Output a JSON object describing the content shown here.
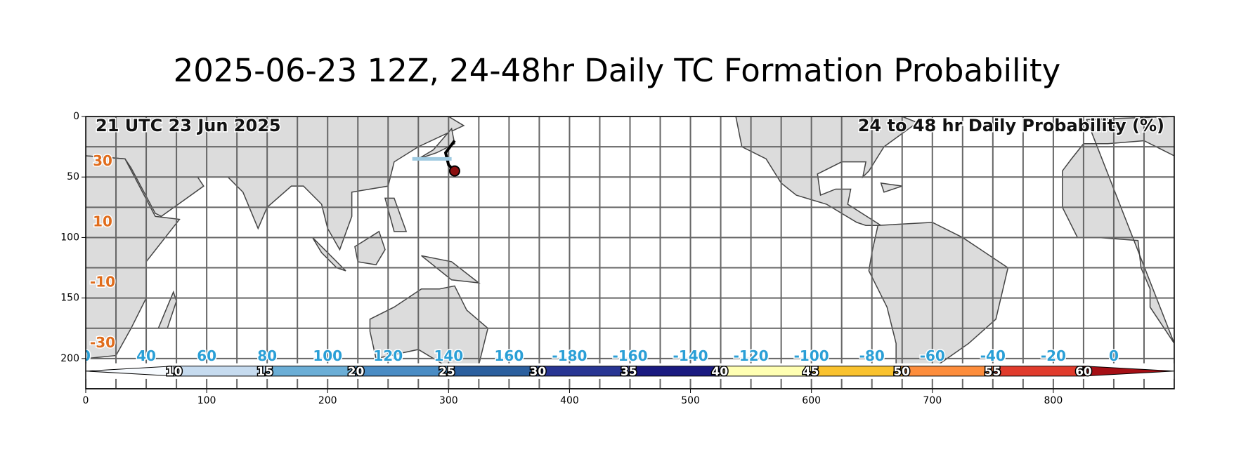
{
  "title": "2025-06-23 12Z, 24-48hr Daily TC Formation Probability",
  "axes": {
    "xlim": [
      0,
      900
    ],
    "ylim": [
      225,
      0
    ],
    "xticks": [
      0,
      100,
      200,
      300,
      400,
      500,
      600,
      700,
      800
    ],
    "yticks": [
      0,
      50,
      100,
      150,
      200
    ]
  },
  "map": {
    "valid_time": "21 UTC 23 Jun 2025",
    "product": "24 to 48 hr Daily Probability (%)",
    "lat_labels": [
      "30",
      "10",
      "-10",
      "-30"
    ],
    "lon_labels": [
      "0",
      "40",
      "60",
      "80",
      "100",
      "120",
      "140",
      "160",
      "-180",
      "-160",
      "-140",
      "-120",
      "-100",
      "-80",
      "-60",
      "-40",
      "-20",
      "0"
    ]
  },
  "colorbar": {
    "labels": [
      "10",
      "15",
      "20",
      "25",
      "30",
      "35",
      "40",
      "45",
      "50",
      "55",
      "60"
    ],
    "colors": [
      "#f7fbff",
      "#c6dbef",
      "#6baed6",
      "#4a8cc4",
      "#2b5f9e",
      "#283593",
      "#1a1a80",
      "#ffffb2",
      "#f9c22e",
      "#fd8d3c",
      "#e03b2c",
      "#a50f15"
    ]
  }
}
